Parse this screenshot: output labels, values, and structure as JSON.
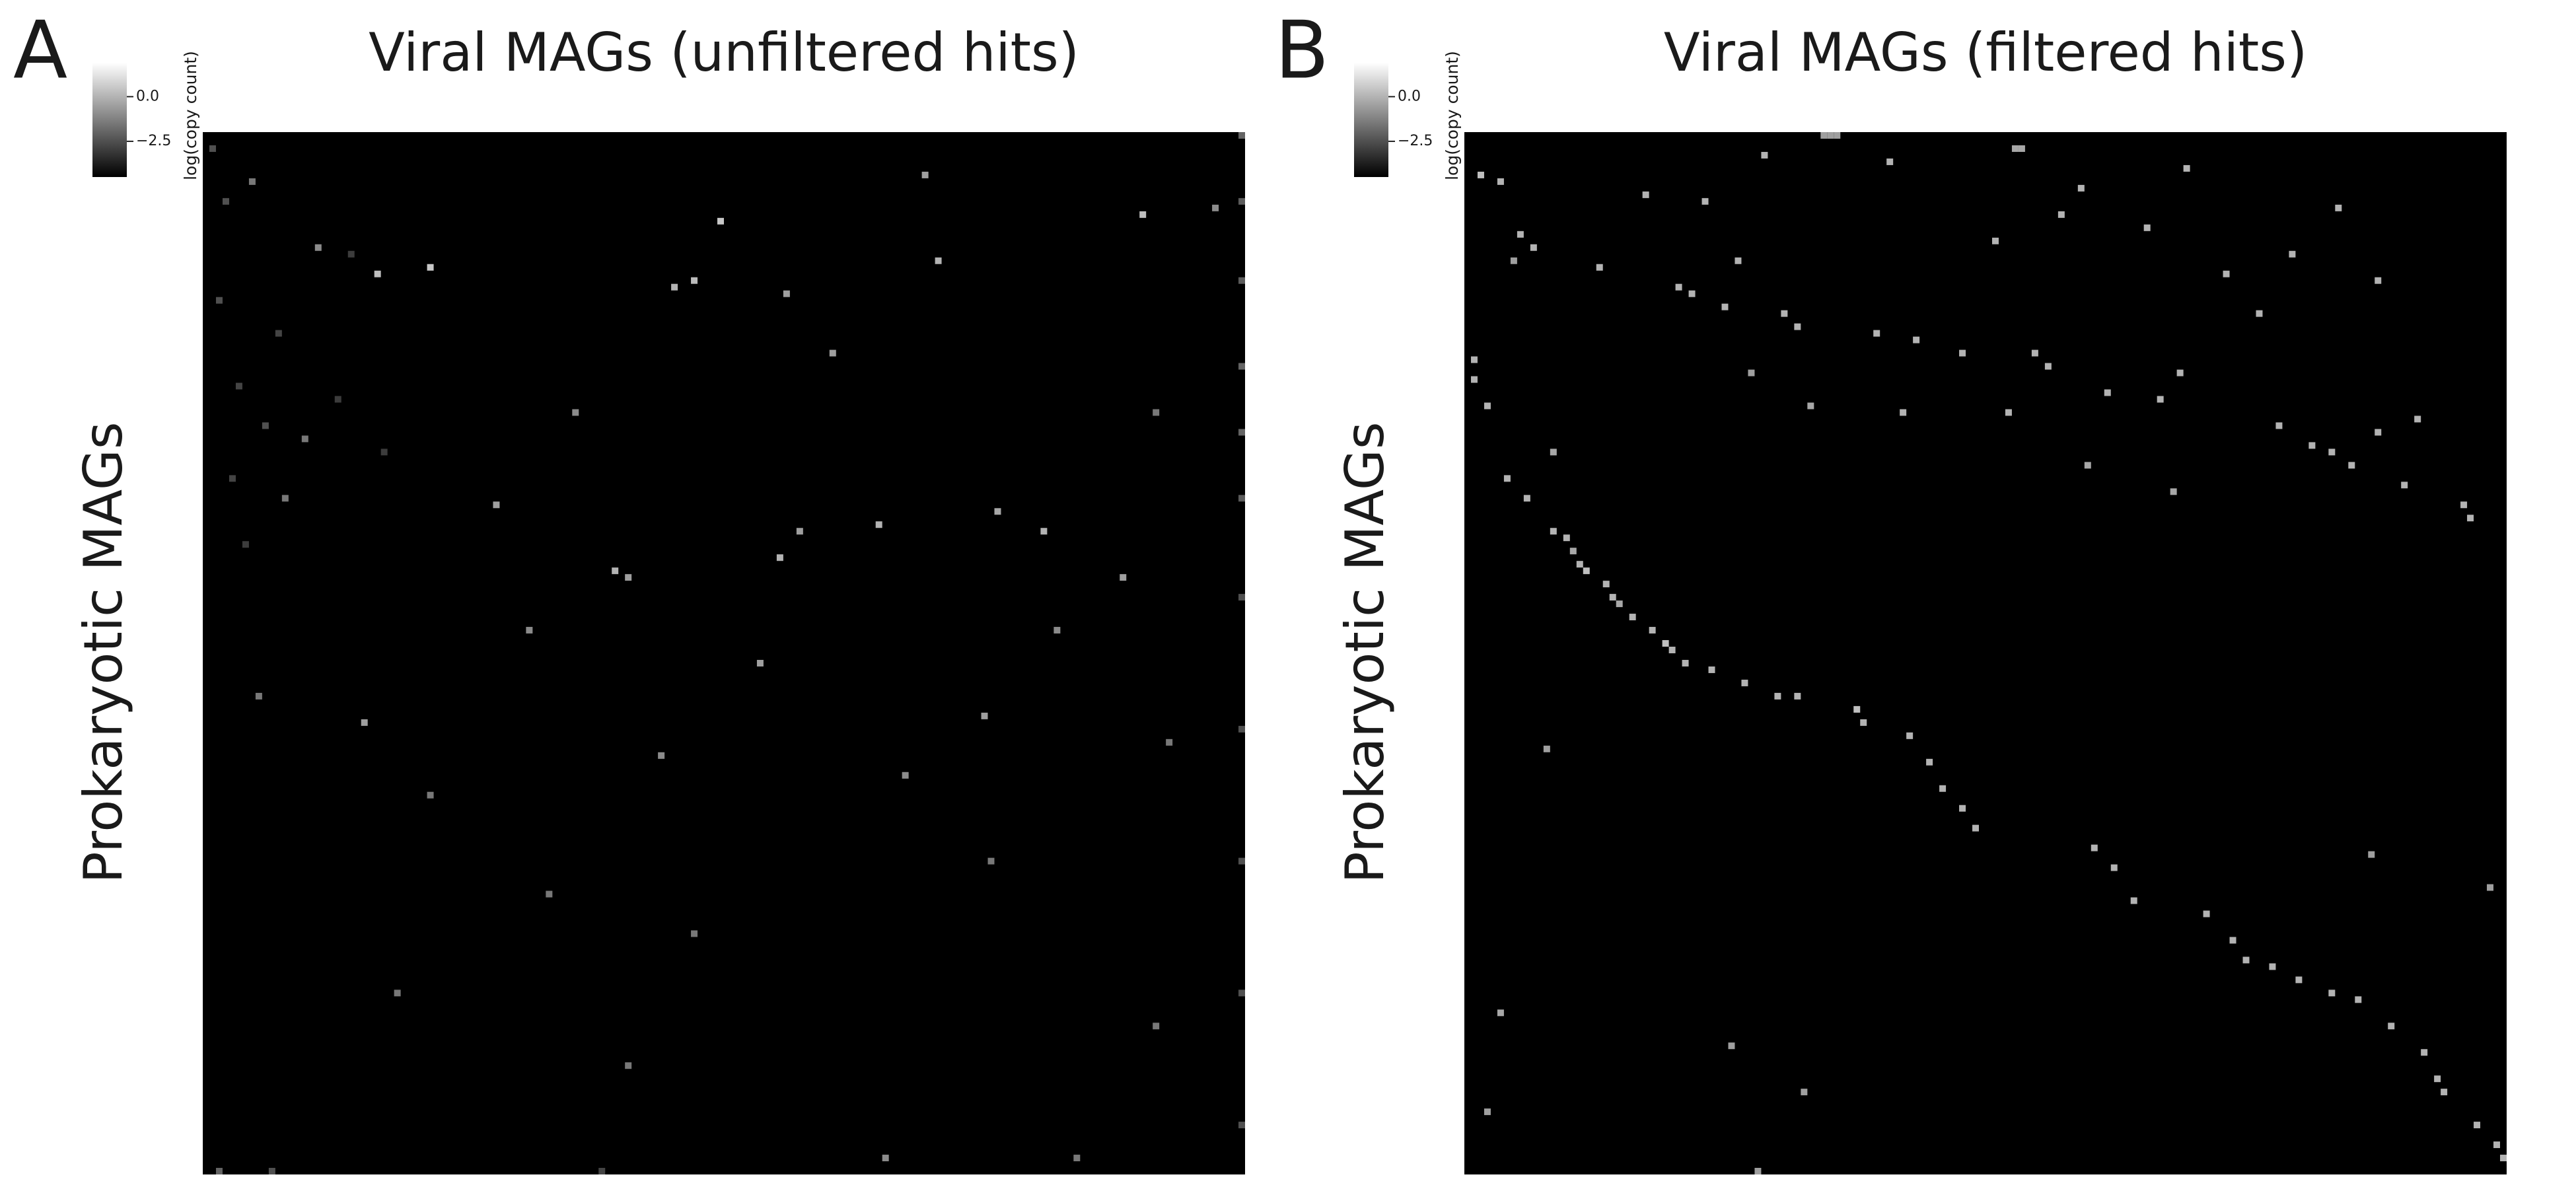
{
  "chart_data": [
    {
      "type": "heatmap",
      "panel_label": "A",
      "title": "Viral MAGs (unfiltered hits)",
      "ylabel": "Prokaryotic MAGs",
      "colorbar_label": "log(copy count)",
      "clim": [
        -4.5,
        1.9
      ],
      "colorbar_ticks": [
        {
          "value": 0,
          "label": "0.0"
        },
        {
          "value": -2.5,
          "label": "−2.5"
        }
      ],
      "n_rows": 158,
      "n_cols": 158,
      "cells": [
        [
          20,
          34,
          0.5
        ],
        [
          21,
          26,
          0.3
        ],
        [
          13,
          78,
          0.5
        ],
        [
          19,
          111,
          0
        ],
        [
          33,
          95,
          -0.5
        ],
        [
          23,
          71,
          0
        ],
        [
          22,
          74,
          0.2
        ],
        [
          56,
          44,
          -0.5
        ],
        [
          66,
          62,
          0
        ],
        [
          67,
          64,
          -0.5
        ],
        [
          64,
          87,
          0
        ],
        [
          60,
          90,
          -0.5
        ],
        [
          59,
          102,
          0
        ],
        [
          57,
          120,
          -0.3
        ],
        [
          60,
          127,
          0
        ],
        [
          89,
          24,
          -0.5
        ],
        [
          94,
          69,
          -1
        ],
        [
          80,
          84,
          -0.5
        ],
        [
          97,
          106,
          -1
        ],
        [
          88,
          118,
          -0.5
        ],
        [
          75,
          129,
          -1
        ],
        [
          67,
          139,
          -0.5
        ],
        [
          12,
          142,
          0.3
        ],
        [
          6,
          109,
          -0.5
        ],
        [
          24,
          88,
          -0.5
        ],
        [
          42,
          56,
          -1
        ],
        [
          75,
          49,
          -1
        ],
        [
          100,
          34,
          -1.5
        ],
        [
          46,
          15,
          -1.5
        ],
        [
          85,
          8,
          -1.5
        ],
        [
          130,
          29,
          -1.5
        ],
        [
          115,
          52,
          -1.5
        ],
        [
          121,
          74,
          -1.5
        ],
        [
          110,
          119,
          -1.5
        ],
        [
          135,
          144,
          -1.5
        ],
        [
          155,
          132,
          -1.5
        ],
        [
          155,
          103,
          -1
        ],
        [
          141,
          64,
          -1.5
        ],
        [
          92,
          146,
          -1.5
        ],
        [
          42,
          144,
          -1.5
        ],
        [
          11,
          153,
          -1
        ],
        [
          17,
          17,
          -1
        ],
        [
          7,
          7,
          -1.5
        ],
        [
          55,
          12,
          -1.5
        ],
        [
          2,
          1,
          -2.5
        ],
        [
          10,
          3,
          -2.5
        ],
        [
          25,
          2,
          -2.5
        ],
        [
          38,
          5,
          -2.8
        ],
        [
          44,
          9,
          -2.5
        ],
        [
          52,
          4,
          -2.8
        ],
        [
          62,
          6,
          -3
        ],
        [
          30,
          11,
          -2.8
        ],
        [
          18,
          22,
          -3
        ],
        [
          40,
          20,
          -3
        ],
        [
          48,
          27,
          -3
        ],
        [
          157,
          2,
          -2
        ],
        [
          157,
          10,
          -2.5
        ],
        [
          157,
          60,
          -2.8
        ],
        [
          0,
          157,
          -2
        ],
        [
          10,
          157,
          -2.2
        ],
        [
          22,
          157,
          -2.2
        ],
        [
          35,
          157,
          -2
        ],
        [
          45,
          157,
          -2
        ],
        [
          55,
          157,
          -2.2
        ],
        [
          70,
          157,
          -2.5
        ],
        [
          90,
          157,
          -2.5
        ],
        [
          110,
          157,
          -2.5
        ],
        [
          130,
          157,
          -2.5
        ],
        [
          150,
          157,
          -2.5
        ]
      ]
    },
    {
      "type": "heatmap",
      "panel_label": "B",
      "title": "Viral MAGs (filtered hits)",
      "ylabel": "Prokaryotic MAGs",
      "colorbar_label": "log(copy count)",
      "clim": [
        -4.5,
        1.9
      ],
      "colorbar_ticks": [
        {
          "value": 0,
          "label": "0.0"
        },
        {
          "value": -2.5,
          "label": "−2.5"
        }
      ],
      "n_rows": 158,
      "n_cols": 158,
      "cells": [
        [
          60,
          13,
          0
        ],
        [
          61,
          15,
          0
        ],
        [
          63,
          16,
          -0.3
        ],
        [
          65,
          17,
          0
        ],
        [
          66,
          18,
          0.3
        ],
        [
          68,
          21,
          0
        ],
        [
          70,
          22,
          0
        ],
        [
          71,
          23,
          -0.3
        ],
        [
          73,
          25,
          0
        ],
        [
          75,
          28,
          0
        ],
        [
          77,
          30,
          0.3
        ],
        [
          78,
          31,
          0
        ],
        [
          80,
          33,
          0
        ],
        [
          81,
          37,
          0
        ],
        [
          83,
          42,
          0
        ],
        [
          85,
          47,
          0
        ],
        [
          85,
          50,
          0
        ],
        [
          87,
          59,
          0.3
        ],
        [
          89,
          60,
          0
        ],
        [
          91,
          67,
          0
        ],
        [
          95,
          70,
          0
        ],
        [
          99,
          72,
          0
        ],
        [
          102,
          75,
          0
        ],
        [
          105,
          77,
          0
        ],
        [
          108,
          95,
          0
        ],
        [
          111,
          98,
          0
        ],
        [
          116,
          101,
          0
        ],
        [
          118,
          112,
          0
        ],
        [
          122,
          116,
          0
        ],
        [
          125,
          118,
          0
        ],
        [
          126,
          122,
          0
        ],
        [
          128,
          126,
          0
        ],
        [
          130,
          131,
          0
        ],
        [
          131,
          135,
          0
        ],
        [
          135,
          140,
          0
        ],
        [
          139,
          145,
          0
        ],
        [
          143,
          147,
          0
        ],
        [
          145,
          148,
          0
        ],
        [
          150,
          153,
          0
        ],
        [
          153,
          156,
          0
        ],
        [
          155,
          157,
          0
        ],
        [
          6,
          2,
          0.3
        ],
        [
          7,
          5,
          0
        ],
        [
          15,
          8,
          0
        ],
        [
          17,
          10,
          0
        ],
        [
          19,
          7,
          -0.5
        ],
        [
          20,
          20,
          0
        ],
        [
          9,
          27,
          0
        ],
        [
          10,
          36,
          0
        ],
        [
          19,
          41,
          0
        ],
        [
          23,
          32,
          0
        ],
        [
          24,
          34,
          0
        ],
        [
          26,
          39,
          0
        ],
        [
          27,
          48,
          0
        ],
        [
          29,
          50,
          0
        ],
        [
          30,
          62,
          0
        ],
        [
          31,
          68,
          0
        ],
        [
          33,
          75,
          0
        ],
        [
          33,
          86,
          0
        ],
        [
          35,
          88,
          0
        ],
        [
          36,
          43,
          -0.5
        ],
        [
          41,
          52,
          -0.3
        ],
        [
          42,
          66,
          0
        ],
        [
          42,
          82,
          0
        ],
        [
          39,
          97,
          0
        ],
        [
          40,
          105,
          0
        ],
        [
          36,
          108,
          0
        ],
        [
          44,
          123,
          0
        ],
        [
          47,
          128,
          0
        ],
        [
          48,
          131,
          0
        ],
        [
          50,
          134,
          0
        ],
        [
          43,
          144,
          0
        ],
        [
          45,
          138,
          0
        ],
        [
          53,
          142,
          0
        ],
        [
          50,
          94,
          -0.3
        ],
        [
          54,
          107,
          -0.3
        ],
        [
          56,
          151,
          0
        ],
        [
          58,
          152,
          0
        ],
        [
          34,
          1,
          0
        ],
        [
          37,
          1,
          0
        ],
        [
          41,
          3,
          0
        ],
        [
          48,
          13,
          -0.3
        ],
        [
          52,
          6,
          0
        ],
        [
          55,
          9,
          0
        ],
        [
          93,
          12,
          -0.5
        ],
        [
          133,
          5,
          -0.3
        ],
        [
          148,
          3,
          -0.5
        ],
        [
          138,
          40,
          -0.5
        ],
        [
          145,
          51,
          -0.5
        ],
        [
          157,
          44,
          -0.5
        ],
        [
          109,
          137,
          -0.5
        ],
        [
          114,
          155,
          -0.5
        ],
        [
          3,
          45,
          0
        ],
        [
          0,
          54,
          -0.5
        ],
        [
          0,
          55,
          -0.5
        ],
        [
          0,
          56,
          -0.5
        ],
        [
          4,
          64,
          0
        ],
        [
          2,
          83,
          -0.3
        ],
        [
          2,
          84,
          -0.3
        ],
        [
          16,
          80,
          0
        ],
        [
          12,
          90,
          0
        ],
        [
          8,
          93,
          0
        ],
        [
          14,
          103,
          0
        ],
        [
          5,
          109,
          0
        ],
        [
          21,
          115,
          0
        ],
        [
          27,
          120,
          0
        ],
        [
          18,
          125,
          0
        ],
        [
          11,
          132,
          0
        ],
        [
          22,
          138,
          0
        ]
      ]
    }
  ]
}
